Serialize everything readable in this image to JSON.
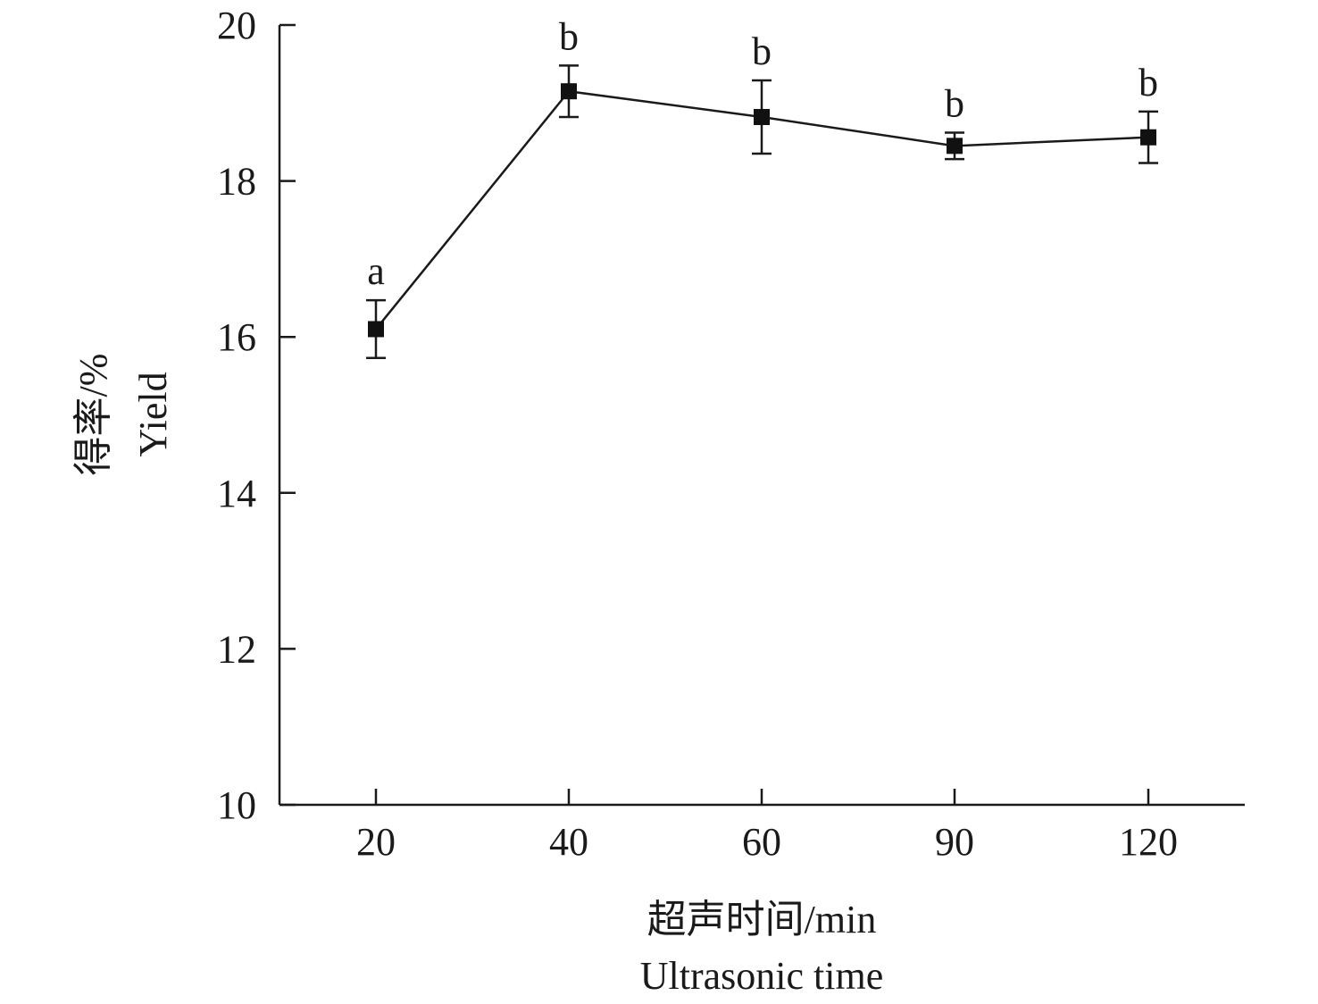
{
  "chart_data": {
    "type": "line",
    "x_axis": {
      "title_cn": "超声时间/min",
      "title_en": "Ultrasonic time",
      "categories": [
        "20",
        "40",
        "60",
        "90",
        "120"
      ]
    },
    "y_axis": {
      "title_cn": "得率/%",
      "title_en": "Yield",
      "ylim": [
        10,
        20
      ],
      "ticks": [
        10,
        12,
        14,
        16,
        18,
        20
      ]
    },
    "grid": false,
    "series": [
      {
        "marker": "square",
        "color": "#111111",
        "points": [
          {
            "x": "20",
            "y": 16.1,
            "error": 0.37,
            "label": "a"
          },
          {
            "x": "40",
            "y": 19.15,
            "error": 0.33,
            "label": "b"
          },
          {
            "x": "60",
            "y": 18.82,
            "error": 0.47,
            "label": "b"
          },
          {
            "x": "90",
            "y": 18.45,
            "error": 0.17,
            "label": "b"
          },
          {
            "x": "120",
            "y": 18.56,
            "error": 0.33,
            "label": "b"
          }
        ]
      }
    ]
  }
}
